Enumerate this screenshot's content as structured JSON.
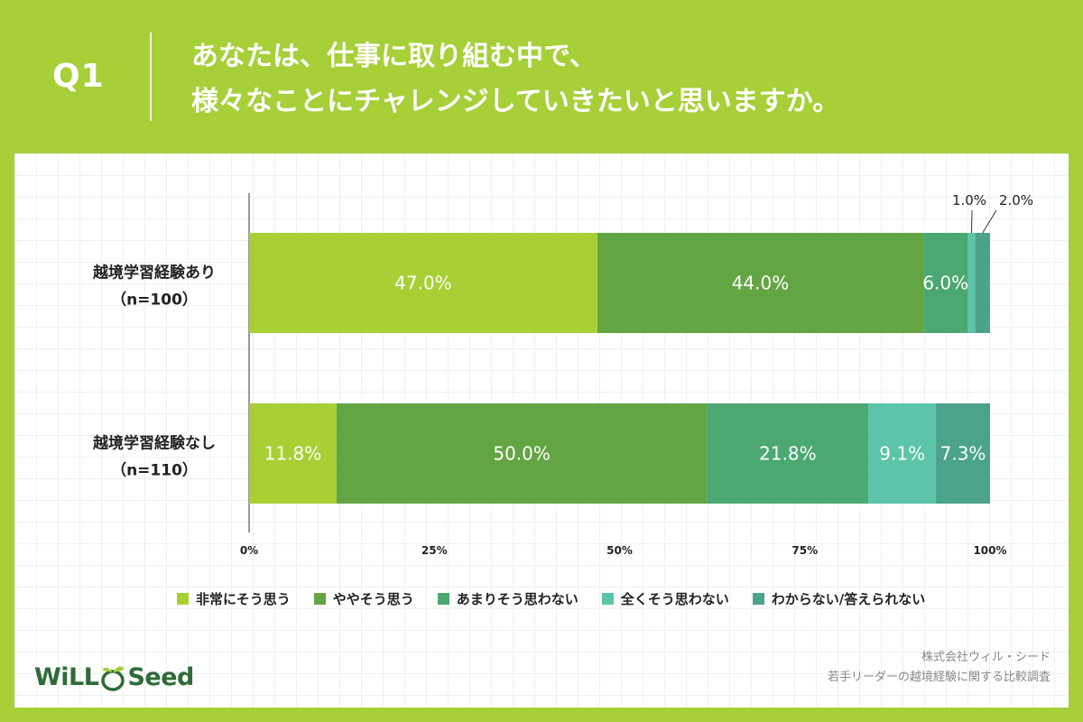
{
  "header": {
    "q_label": "Q1",
    "question_line1": "あなたは、仕事に取り組む中で、",
    "question_line2": "様々なことにチャレンジしていきたいと思いますか。"
  },
  "colors": {
    "background": "#a6cf38",
    "series": [
      "#a8cf34",
      "#63a543",
      "#4aa870",
      "#5cc4a8",
      "#4aa38a"
    ]
  },
  "chart_data": {
    "type": "bar",
    "orientation": "horizontal",
    "stacked": true,
    "categories": [
      {
        "line1": "越境学習経験あり",
        "line2": "（n=100）"
      },
      {
        "line1": "越境学習経験なし",
        "line2": "（n=110）"
      }
    ],
    "series": [
      {
        "name": "非常にそう思う",
        "values": [
          47.0,
          11.8
        ]
      },
      {
        "name": "ややそう思う",
        "values": [
          44.0,
          50.0
        ]
      },
      {
        "name": "あまりそう思わない",
        "values": [
          6.0,
          21.8
        ]
      },
      {
        "name": "全くそう思わない",
        "values": [
          1.0,
          9.1
        ]
      },
      {
        "name": "わからない/答えられない",
        "values": [
          2.0,
          7.3
        ]
      }
    ],
    "xlim": [
      0,
      100
    ],
    "xticks": [
      "0%",
      "25%",
      "50%",
      "75%",
      "100%"
    ],
    "value_format": "%",
    "legend_position": "bottom"
  },
  "source": {
    "line1": "株式会社ウィル・シード",
    "line2": "若手リーダーの越境経験に関する比較調査"
  },
  "logo": {
    "part1": "WiLL",
    "part2": "Seed"
  }
}
